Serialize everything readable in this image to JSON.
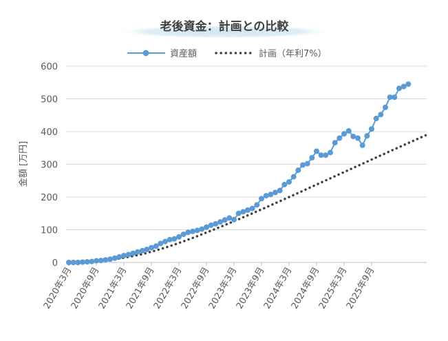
{
  "chart_data": {
    "type": "line",
    "title": "老後資金：計画との比較",
    "ylabel": "金額 [万円]",
    "ylim": [
      0,
      600
    ],
    "yticks": [
      0,
      100,
      200,
      300,
      400,
      500,
      600
    ],
    "grid": true,
    "legend_position": "top",
    "x_tick_labels": [
      "2020年3月",
      "2020年9月",
      "2021年3月",
      "2021年9月",
      "2022年3月",
      "2022年9月",
      "2023年3月",
      "2023年9月",
      "2024年3月",
      "2024年9月",
      "2025年3月",
      "2025年9月"
    ],
    "x_start": "2020年3月",
    "series": [
      {
        "name": "資産額",
        "style": "line-marker",
        "color": "#5B9BD5",
        "values": [
          0,
          0,
          0,
          1,
          2,
          3,
          5,
          6,
          8,
          10,
          13,
          17,
          21,
          24,
          28,
          32,
          36,
          40,
          45,
          50,
          58,
          64,
          70,
          72,
          78,
          86,
          92,
          95,
          98,
          102,
          108,
          114,
          118,
          124,
          130,
          136,
          131,
          150,
          155,
          160,
          165,
          176,
          195,
          204,
          208,
          214,
          220,
          238,
          246,
          262,
          282,
          298,
          302,
          320,
          340,
          328,
          328,
          336,
          366,
          380,
          393,
          402,
          385,
          380,
          358,
          387,
          408,
          440,
          452,
          474,
          505,
          505,
          532,
          538,
          545
        ],
        "label_text": "資産額"
      },
      {
        "name": "計画（年利7%）",
        "style": "dotted",
        "color": "#404040",
        "values": [
          0.0,
          0.5,
          1.0,
          1.5,
          2.0,
          3.0,
          4.0,
          5.0,
          6.5,
          8.0,
          10.0,
          12.0,
          14.5,
          17.0,
          19.5,
          22.5,
          25.5,
          29.0,
          33.0,
          36.8,
          41.0,
          45.3,
          49.8,
          54.5,
          59.5,
          64.5,
          69.8,
          75.0,
          80.5,
          86.0,
          91.5,
          97.0,
          102.8,
          108.5,
          114.3,
          120.2,
          126.0,
          132.0,
          138.0,
          144.0,
          150.0,
          156.2,
          162.3,
          168.5,
          174.7,
          181.0,
          187.2,
          193.5,
          199.8,
          206.0,
          212.5,
          218.8,
          225.2,
          231.5,
          238.0,
          244.3,
          250.7,
          257.0,
          263.5,
          269.8,
          276.2,
          282.5,
          289.0,
          295.3,
          301.7,
          308.0,
          314.5,
          320.8,
          327.2,
          333.5,
          340.0,
          346.2,
          352.5,
          358.8,
          365.0,
          371.2,
          377.5,
          383.8,
          390.0
        ],
        "label_text": "計画（年利7%）"
      }
    ]
  }
}
